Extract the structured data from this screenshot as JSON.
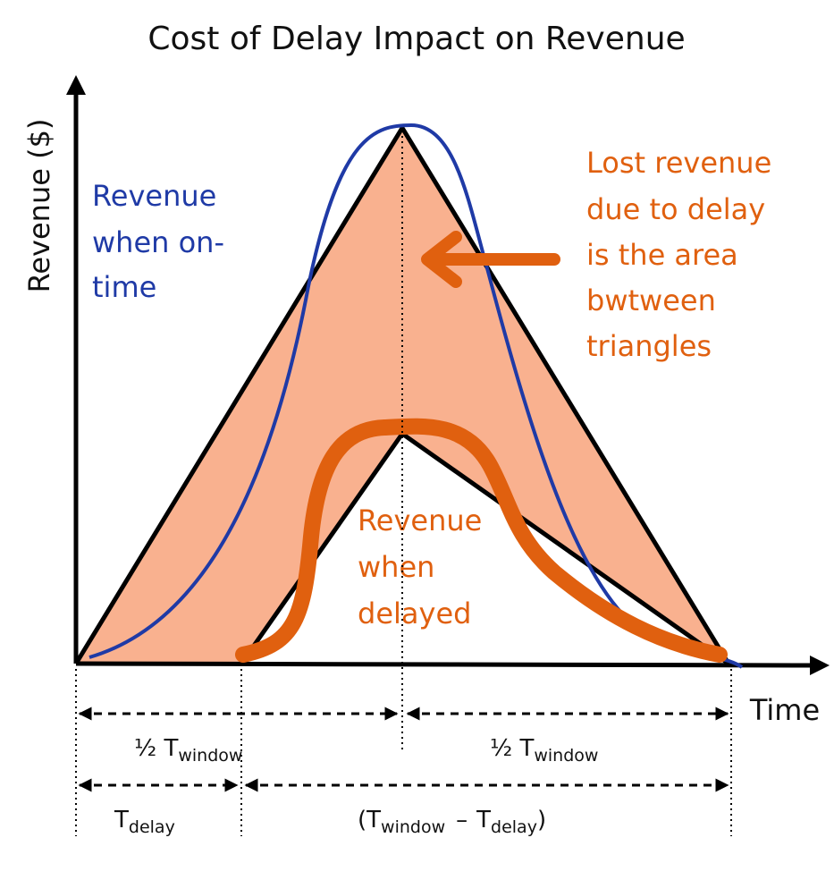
{
  "title": "Cost of Delay Impact on Revenue",
  "axes": {
    "y_label": "Revenue ($)",
    "x_label": "Time"
  },
  "annotations": {
    "on_time": [
      "Revenue",
      "when on-",
      "time"
    ],
    "lost": [
      "Lost revenue",
      "due to delay",
      "is the area",
      "bwtween",
      "triangles"
    ],
    "delayed": [
      "Revenue",
      "when",
      "delayed"
    ]
  },
  "dimensions": {
    "half_window_left": {
      "prefix": "½",
      "main": "T",
      "sub": "window"
    },
    "half_window_right": {
      "prefix": "½",
      "main": "T",
      "sub": "window"
    },
    "delay": {
      "main": "T",
      "sub": "delay"
    },
    "remaining": {
      "open": "(",
      "main1": "T",
      "sub1": "window",
      "minus": "–",
      "main2": "T",
      "sub2": "delay",
      "close": ")"
    }
  }
}
